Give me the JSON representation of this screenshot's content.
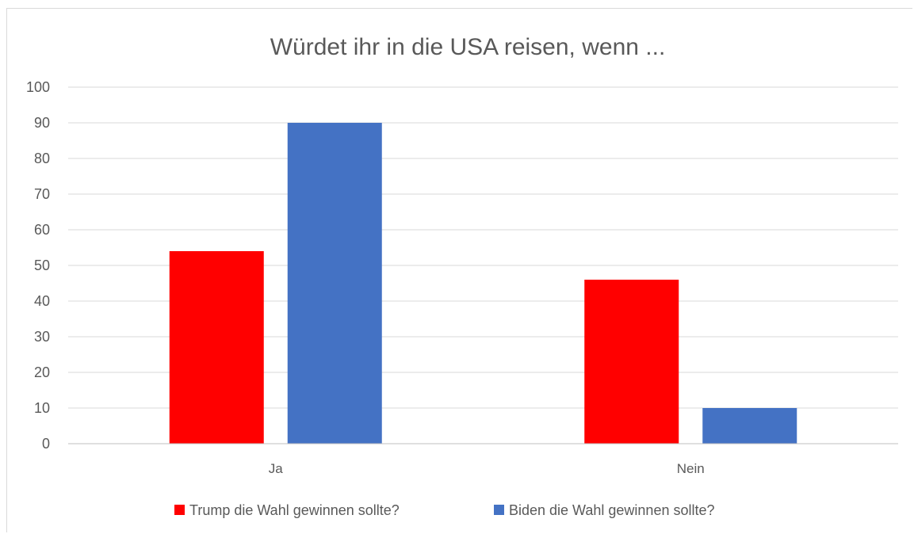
{
  "chart_data": {
    "type": "bar",
    "title": "Würdet ihr in die USA reisen, wenn ...",
    "xlabel": "",
    "ylabel": "",
    "categories": [
      "Ja",
      "Nein"
    ],
    "series": [
      {
        "name": "Trump die Wahl gewinnen sollte?",
        "values": [
          54,
          46
        ]
      },
      {
        "name": "Biden die Wahl gewinnen sollte?",
        "values": [
          90,
          10
        ]
      }
    ],
    "ylim": [
      0,
      100
    ],
    "yticks": [
      0,
      10,
      20,
      30,
      40,
      50,
      60,
      70,
      80,
      90,
      100
    ],
    "grid": true,
    "legend": "bottom",
    "colors": {
      "series": [
        "#ff0000",
        "#4472c4"
      ],
      "grid": "#d9d9d9",
      "axis": "#bfbfbf",
      "text": "#595959"
    }
  }
}
